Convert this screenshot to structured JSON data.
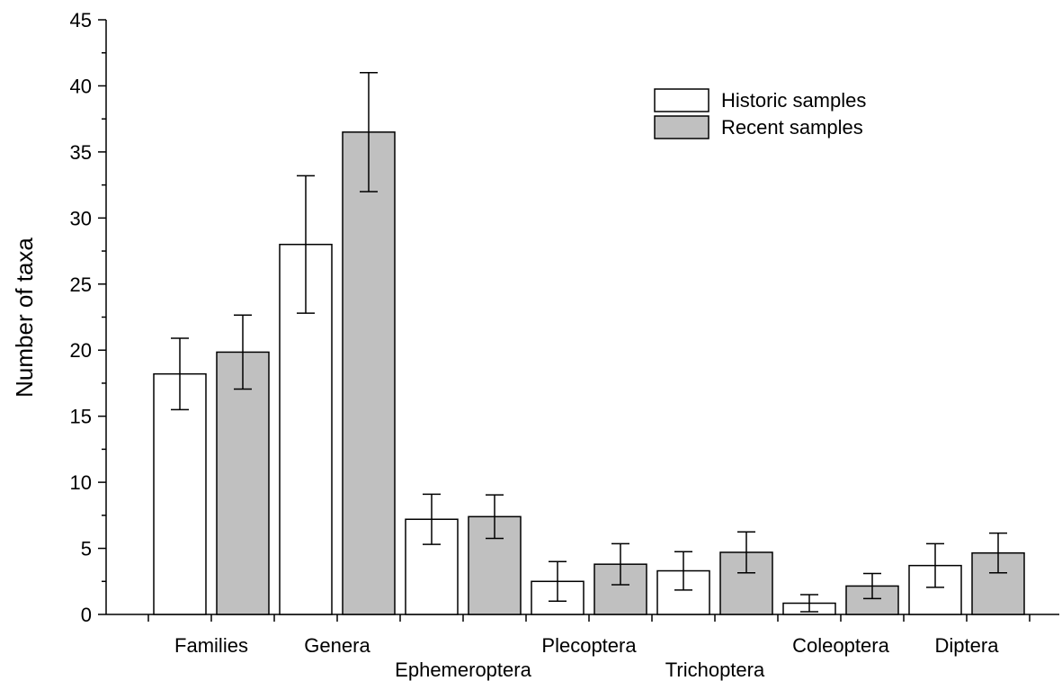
{
  "chart_data": {
    "type": "bar",
    "title": "",
    "xlabel": "",
    "ylabel": "Number of taxa",
    "ylim": [
      0,
      45
    ],
    "yticks": [
      0,
      5,
      10,
      15,
      20,
      25,
      30,
      35,
      40,
      45
    ],
    "categories": [
      "Families",
      "Genera",
      "Ephemeroptera",
      "Plecoptera",
      "Trichoptera",
      "Coleoptera",
      "Diptera"
    ],
    "series": [
      {
        "name": "Historic samples",
        "color": "#ffffff",
        "values": [
          18.2,
          28.0,
          7.2,
          2.5,
          3.3,
          0.85,
          3.7
        ],
        "error": [
          2.7,
          5.2,
          1.9,
          1.5,
          1.45,
          0.65,
          1.65
        ]
      },
      {
        "name": "Recent samples",
        "color": "#c0c0c0",
        "values": [
          19.85,
          36.5,
          7.4,
          3.8,
          4.7,
          2.15,
          4.65
        ],
        "error": [
          2.8,
          4.5,
          1.65,
          1.55,
          1.55,
          0.95,
          1.5
        ]
      }
    ],
    "grid": false,
    "legend_position": "top-right"
  }
}
